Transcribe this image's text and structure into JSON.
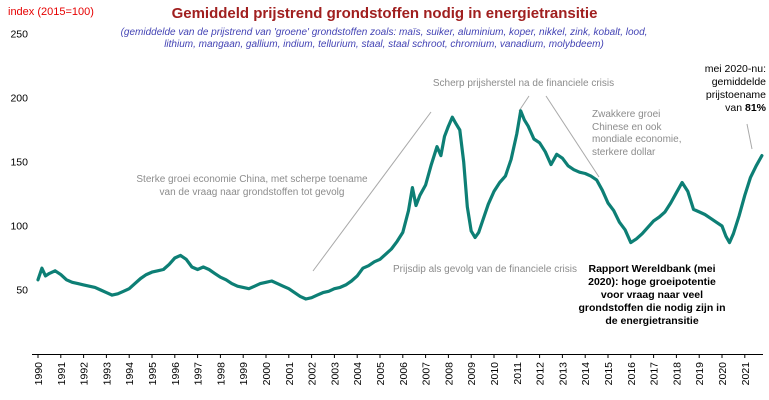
{
  "header": {
    "index_label": "index (2015=100)",
    "title": "Gemiddeld prijstrend grondstoffen nodig in energietransitie",
    "subtitle": "(gemiddelde van de prijstrend van 'groene' grondstoffen zoals: maïs, suiker, aluminium, koper, nikkel, zink, kobalt, lood, lithium, mangaan, gallium, indium, tellurium, staal, staal schroot, chromium, vanadium, molybdeem)"
  },
  "annotations": {
    "sterke_groei": "Sterke groei economie China, met scherpe toename van de vraag naar grondstoffen tot gevolg",
    "scherp_prijsherstel": "Scherp prijsherstel na de financiele crisis",
    "prijsdip": "Prijsdip als gevolg van de financiele crisis",
    "zwakkere_groei": "Zwakkere groei Chinese en ook mondiale economie, sterkere dollar",
    "mei2020_prefix": "mei 2020-nu: gemiddelde prijstoename van ",
    "mei2020_bold": "81%",
    "rapport_bold": "Rapport Wereldbank (mei 2020):",
    "rapport_rest": " hoge groeipotentie voor vraag naar veel grondstoffen die nodig zijn in de energietransitie"
  },
  "colors": {
    "line": "#0d7f75",
    "title": "#a01f1f",
    "subtitle": "#4343b4",
    "index_label": "#e60000",
    "annotation_gray": "#8c8c8c",
    "pointer_line": "#a9a9a9",
    "axis": "#000000"
  },
  "chart_data": {
    "type": "line",
    "title": "Gemiddeld prijstrend grondstoffen nodig in energietransitie",
    "subtitle": "(gemiddelde van de prijstrend van 'groene' grondstoffen zoals: maïs, suiker, aluminium, koper, nikkel, zink, kobalt, lood, lithium, mangaan, gallium, indium, tellurium, staal, staal schroot, chromium, vanadium, molybdeem)",
    "xlabel": "",
    "ylabel": "index (2015=100)",
    "ylim": [
      0,
      250
    ],
    "y_ticks": [
      50,
      100,
      150,
      200,
      250
    ],
    "x_ticks": [
      1990,
      1991,
      1992,
      1993,
      1994,
      1995,
      1996,
      1997,
      1998,
      1999,
      2000,
      2001,
      2002,
      2003,
      2004,
      2005,
      2006,
      2007,
      2008,
      2009,
      2010,
      2011,
      2012,
      2013,
      2014,
      2015,
      2016,
      2017,
      2018,
      2019,
      2020,
      2021
    ],
    "grid": false,
    "legend": "none",
    "series": [
      {
        "name": "gemiddelde prijstrend groene grondstoffen",
        "color": "#0d7f75",
        "points": [
          [
            1990.0,
            58
          ],
          [
            1990.17,
            67
          ],
          [
            1990.33,
            61
          ],
          [
            1990.5,
            63
          ],
          [
            1990.75,
            65
          ],
          [
            1991.0,
            62
          ],
          [
            1991.25,
            58
          ],
          [
            1991.5,
            56
          ],
          [
            1991.75,
            55
          ],
          [
            1992.0,
            54
          ],
          [
            1992.25,
            53
          ],
          [
            1992.5,
            52
          ],
          [
            1992.75,
            50
          ],
          [
            1993.0,
            48
          ],
          [
            1993.25,
            46
          ],
          [
            1993.5,
            47
          ],
          [
            1993.75,
            49
          ],
          [
            1994.0,
            51
          ],
          [
            1994.25,
            55
          ],
          [
            1994.5,
            59
          ],
          [
            1994.75,
            62
          ],
          [
            1995.0,
            64
          ],
          [
            1995.25,
            65
          ],
          [
            1995.5,
            66
          ],
          [
            1995.75,
            70
          ],
          [
            1996.0,
            75
          ],
          [
            1996.25,
            77
          ],
          [
            1996.5,
            74
          ],
          [
            1996.75,
            68
          ],
          [
            1997.0,
            66
          ],
          [
            1997.25,
            68
          ],
          [
            1997.5,
            66
          ],
          [
            1997.75,
            63
          ],
          [
            1998.0,
            60
          ],
          [
            1998.25,
            58
          ],
          [
            1998.5,
            55
          ],
          [
            1998.75,
            53
          ],
          [
            1999.0,
            52
          ],
          [
            1999.25,
            51
          ],
          [
            1999.5,
            53
          ],
          [
            1999.75,
            55
          ],
          [
            2000.0,
            56
          ],
          [
            2000.25,
            57
          ],
          [
            2000.5,
            55
          ],
          [
            2000.75,
            53
          ],
          [
            2001.0,
            51
          ],
          [
            2001.25,
            48
          ],
          [
            2001.5,
            45
          ],
          [
            2001.75,
            43
          ],
          [
            2002.0,
            44
          ],
          [
            2002.25,
            46
          ],
          [
            2002.5,
            48
          ],
          [
            2002.75,
            49
          ],
          [
            2003.0,
            51
          ],
          [
            2003.25,
            52
          ],
          [
            2003.5,
            54
          ],
          [
            2003.75,
            57
          ],
          [
            2004.0,
            61
          ],
          [
            2004.25,
            67
          ],
          [
            2004.5,
            69
          ],
          [
            2004.75,
            72
          ],
          [
            2005.0,
            74
          ],
          [
            2005.25,
            78
          ],
          [
            2005.5,
            82
          ],
          [
            2005.75,
            88
          ],
          [
            2006.0,
            95
          ],
          [
            2006.25,
            112
          ],
          [
            2006.42,
            130
          ],
          [
            2006.58,
            116
          ],
          [
            2006.75,
            124
          ],
          [
            2007.0,
            132
          ],
          [
            2007.25,
            148
          ],
          [
            2007.5,
            162
          ],
          [
            2007.67,
            155
          ],
          [
            2007.83,
            170
          ],
          [
            2008.0,
            178
          ],
          [
            2008.17,
            185
          ],
          [
            2008.33,
            180
          ],
          [
            2008.5,
            175
          ],
          [
            2008.67,
            150
          ],
          [
            2008.83,
            115
          ],
          [
            2009.0,
            96
          ],
          [
            2009.17,
            91
          ],
          [
            2009.33,
            95
          ],
          [
            2009.5,
            104
          ],
          [
            2009.75,
            117
          ],
          [
            2010.0,
            127
          ],
          [
            2010.25,
            134
          ],
          [
            2010.5,
            139
          ],
          [
            2010.75,
            152
          ],
          [
            2011.0,
            172
          ],
          [
            2011.17,
            190
          ],
          [
            2011.33,
            183
          ],
          [
            2011.5,
            178
          ],
          [
            2011.75,
            168
          ],
          [
            2012.0,
            165
          ],
          [
            2012.25,
            158
          ],
          [
            2012.5,
            148
          ],
          [
            2012.75,
            156
          ],
          [
            2013.0,
            153
          ],
          [
            2013.25,
            147
          ],
          [
            2013.5,
            144
          ],
          [
            2013.75,
            142
          ],
          [
            2014.0,
            141
          ],
          [
            2014.25,
            139
          ],
          [
            2014.5,
            136
          ],
          [
            2014.75,
            128
          ],
          [
            2015.0,
            118
          ],
          [
            2015.25,
            112
          ],
          [
            2015.5,
            103
          ],
          [
            2015.75,
            97
          ],
          [
            2016.0,
            87
          ],
          [
            2016.25,
            90
          ],
          [
            2016.5,
            94
          ],
          [
            2016.75,
            99
          ],
          [
            2017.0,
            104
          ],
          [
            2017.25,
            107
          ],
          [
            2017.5,
            111
          ],
          [
            2017.75,
            118
          ],
          [
            2018.0,
            126
          ],
          [
            2018.25,
            134
          ],
          [
            2018.5,
            127
          ],
          [
            2018.75,
            113
          ],
          [
            2019.0,
            111
          ],
          [
            2019.25,
            109
          ],
          [
            2019.5,
            106
          ],
          [
            2019.75,
            103
          ],
          [
            2020.0,
            100
          ],
          [
            2020.17,
            92
          ],
          [
            2020.33,
            87
          ],
          [
            2020.5,
            94
          ],
          [
            2020.75,
            108
          ],
          [
            2021.0,
            124
          ],
          [
            2021.25,
            138
          ],
          [
            2021.5,
            147
          ],
          [
            2021.75,
            155
          ]
        ]
      }
    ]
  }
}
